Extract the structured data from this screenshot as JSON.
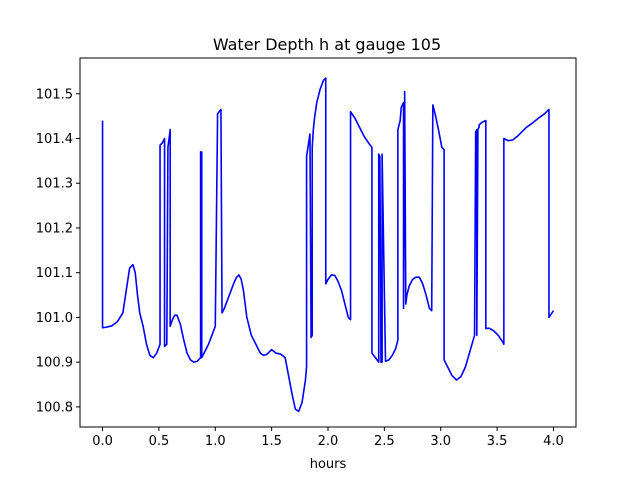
{
  "chart_data": {
    "type": "line",
    "title": "Water Depth h at gauge 105",
    "xlabel": "hours",
    "ylabel": "",
    "xlim": [
      -0.2,
      4.2
    ],
    "ylim": [
      100.755,
      101.58
    ],
    "xticks": [
      0.0,
      0.5,
      1.0,
      1.5,
      2.0,
      2.5,
      3.0,
      3.5,
      4.0
    ],
    "xtick_labels": [
      "0.0",
      "0.5",
      "1.0",
      "1.5",
      "2.0",
      "2.5",
      "3.0",
      "3.5",
      "4.0"
    ],
    "yticks": [
      100.8,
      100.9,
      101.0,
      101.1,
      101.2,
      101.3,
      101.4,
      101.5
    ],
    "ytick_labels": [
      "100.8",
      "100.9",
      "101.0",
      "101.1",
      "101.2",
      "101.3",
      "101.4",
      "101.5"
    ],
    "grid": false,
    "legend": "none",
    "series": [
      {
        "color": "#0000ff",
        "x": [
          0.0,
          0.0,
          0.03,
          0.08,
          0.13,
          0.18,
          0.21,
          0.24,
          0.27,
          0.29,
          0.31,
          0.33,
          0.36,
          0.39,
          0.42,
          0.45,
          0.48,
          0.51,
          0.51,
          0.53,
          0.55,
          0.55,
          0.57,
          0.58,
          0.6,
          0.6,
          0.62,
          0.64,
          0.66,
          0.69,
          0.72,
          0.75,
          0.78,
          0.81,
          0.84,
          0.87,
          0.87,
          0.88,
          0.88,
          0.91,
          0.94,
          0.97,
          1.0,
          1.02,
          1.02,
          1.05,
          1.06,
          1.08,
          1.11,
          1.14,
          1.17,
          1.19,
          1.21,
          1.23,
          1.25,
          1.28,
          1.32,
          1.36,
          1.4,
          1.43,
          1.46,
          1.5,
          1.54,
          1.58,
          1.62,
          1.65,
          1.68,
          1.71,
          1.74,
          1.77,
          1.8,
          1.81,
          1.81,
          1.84,
          1.85,
          1.86,
          1.86,
          1.87,
          1.88,
          1.9,
          1.93,
          1.96,
          1.98,
          1.98,
          2.0,
          2.03,
          2.06,
          2.09,
          2.12,
          2.15,
          2.18,
          2.2,
          2.2,
          2.24,
          2.28,
          2.32,
          2.36,
          2.39,
          2.39,
          2.42,
          2.45,
          2.45,
          2.46,
          2.47,
          2.48,
          2.48,
          2.51,
          2.54,
          2.57,
          2.6,
          2.62,
          2.62,
          2.64,
          2.65,
          2.67,
          2.67,
          2.68,
          2.68,
          2.69,
          2.7,
          2.72,
          2.75,
          2.78,
          2.81,
          2.84,
          2.87,
          2.9,
          2.92,
          2.93,
          2.95,
          2.98,
          3.01,
          3.03,
          3.03,
          3.06,
          3.1,
          3.14,
          3.18,
          3.22,
          3.26,
          3.3,
          3.31,
          3.32,
          3.32,
          3.33,
          3.34,
          3.34,
          3.36,
          3.38,
          3.4,
          3.4,
          3.43,
          3.47,
          3.51,
          3.55,
          3.56,
          3.56,
          3.6,
          3.64,
          3.68,
          3.72,
          3.76,
          3.8,
          3.84,
          3.88,
          3.92,
          3.96,
          3.96,
          4.0
        ],
        "y": [
          101.44,
          100.977,
          100.978,
          100.981,
          100.99,
          101.01,
          101.06,
          101.11,
          101.118,
          101.1,
          101.05,
          101.01,
          100.98,
          100.94,
          100.915,
          100.91,
          100.92,
          100.94,
          101.385,
          101.39,
          101.4,
          100.935,
          100.94,
          101.38,
          101.42,
          100.98,
          100.995,
          101.005,
          101.005,
          100.985,
          100.95,
          100.92,
          100.905,
          100.9,
          100.902,
          100.91,
          101.37,
          101.37,
          100.91,
          100.925,
          100.94,
          100.96,
          100.98,
          101.44,
          101.455,
          101.465,
          101.01,
          101.02,
          101.04,
          101.06,
          101.08,
          101.09,
          101.095,
          101.085,
          101.06,
          101.0,
          100.96,
          100.94,
          100.92,
          100.915,
          100.918,
          100.928,
          100.92,
          100.918,
          100.91,
          100.87,
          100.83,
          100.795,
          100.79,
          100.81,
          100.86,
          100.89,
          101.36,
          101.41,
          100.955,
          100.96,
          101.38,
          101.42,
          101.445,
          101.48,
          101.51,
          101.53,
          101.535,
          101.075,
          101.085,
          101.095,
          101.094,
          101.08,
          101.06,
          101.03,
          101.0,
          100.995,
          101.46,
          101.445,
          101.425,
          101.405,
          101.39,
          101.38,
          100.92,
          100.91,
          100.9,
          101.365,
          101.36,
          100.9,
          100.9,
          101.365,
          100.902,
          100.905,
          100.915,
          100.93,
          100.95,
          101.42,
          101.44,
          101.47,
          101.48,
          101.02,
          101.49,
          101.505,
          101.03,
          101.05,
          101.07,
          101.085,
          101.09,
          101.09,
          101.075,
          101.05,
          101.02,
          101.015,
          101.475,
          101.455,
          101.42,
          101.38,
          101.375,
          100.905,
          100.89,
          100.87,
          100.86,
          100.868,
          100.89,
          100.925,
          100.96,
          101.415,
          101.42,
          100.96,
          101.42,
          101.425,
          101.43,
          101.435,
          101.438,
          101.44,
          100.975,
          100.976,
          100.97,
          100.96,
          100.945,
          100.94,
          101.4,
          101.395,
          101.397,
          101.405,
          101.415,
          101.425,
          101.432,
          101.44,
          101.448,
          101.455,
          101.465,
          101.0,
          101.015
        ]
      }
    ]
  }
}
